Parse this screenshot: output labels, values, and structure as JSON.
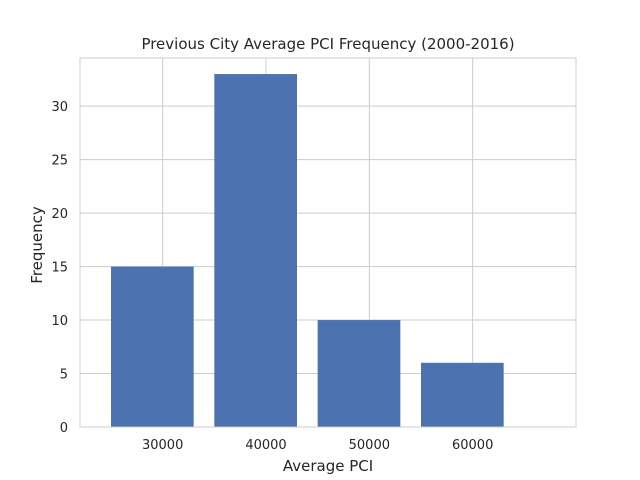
{
  "chart_data": {
    "type": "bar",
    "title": "Previous City Average PCI Frequency (2000-2016)",
    "xlabel": "Average PCI",
    "ylabel": "Frequency",
    "bar_width": 8000,
    "bar_color": "#4c72b0",
    "grid": true,
    "xlim": [
      22000,
      70000
    ],
    "ylim": [
      0,
      34.5
    ],
    "xticks": [
      30000,
      40000,
      50000,
      60000
    ],
    "yticks": [
      0,
      5,
      10,
      15,
      20,
      25,
      30
    ],
    "bars": [
      {
        "x": 29000,
        "value": 15
      },
      {
        "x": 39000,
        "value": 33
      },
      {
        "x": 49000,
        "value": 10
      },
      {
        "x": 59000,
        "value": 6
      }
    ]
  }
}
